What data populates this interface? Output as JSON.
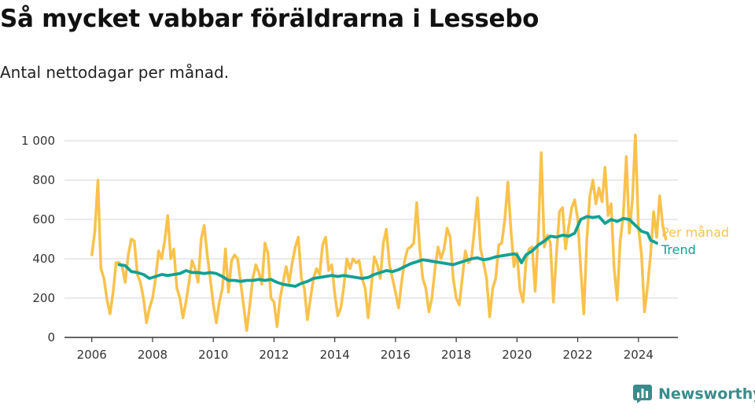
{
  "title": "Så mycket vabbar föräldrarna i Lessebo",
  "subtitle": "Antal nettodagar per månad.",
  "brand": "Newsworthy",
  "colors": {
    "monthly": "#f9c24c",
    "trend": "#10a193",
    "brand": "#3b8b8b"
  },
  "chart_data": {
    "type": "line",
    "title": "Så mycket vabbar föräldrarna i Lessebo",
    "subtitle": "Antal nettodagar per månad.",
    "xlabel": "",
    "ylabel": "",
    "x_ticks": [
      "2006",
      "2008",
      "2010",
      "2012",
      "2014",
      "2016",
      "2018",
      "2020",
      "2022",
      "2024"
    ],
    "y_ticks": [
      "0",
      "200",
      "400",
      "600",
      "800",
      "1 000"
    ],
    "ylim": [
      0,
      1000
    ],
    "xlim": [
      2005.1,
      2025.3
    ],
    "grid": true,
    "legend_position": "right-end",
    "series": [
      {
        "name": "Per månad",
        "color": "#f9c24c",
        "points": [
          [
            2006.0,
            420
          ],
          [
            2006.1,
            540
          ],
          [
            2006.2,
            800
          ],
          [
            2006.3,
            350
          ],
          [
            2006.4,
            300
          ],
          [
            2006.5,
            190
          ],
          [
            2006.6,
            120
          ],
          [
            2006.7,
            230
          ],
          [
            2006.8,
            380
          ],
          [
            2006.9,
            380
          ],
          [
            2007.0,
            360
          ],
          [
            2007.1,
            280
          ],
          [
            2007.2,
            420
          ],
          [
            2007.3,
            500
          ],
          [
            2007.4,
            490
          ],
          [
            2007.5,
            320
          ],
          [
            2007.6,
            280
          ],
          [
            2007.7,
            200
          ],
          [
            2007.8,
            75
          ],
          [
            2007.9,
            150
          ],
          [
            2008.0,
            200
          ],
          [
            2008.1,
            300
          ],
          [
            2008.2,
            440
          ],
          [
            2008.3,
            400
          ],
          [
            2008.4,
            490
          ],
          [
            2008.5,
            620
          ],
          [
            2008.6,
            400
          ],
          [
            2008.7,
            450
          ],
          [
            2008.8,
            250
          ],
          [
            2008.9,
            200
          ],
          [
            2009.0,
            100
          ],
          [
            2009.1,
            180
          ],
          [
            2009.2,
            280
          ],
          [
            2009.3,
            390
          ],
          [
            2009.4,
            350
          ],
          [
            2009.5,
            280
          ],
          [
            2009.6,
            500
          ],
          [
            2009.7,
            570
          ],
          [
            2009.8,
            420
          ],
          [
            2009.9,
            300
          ],
          [
            2010.0,
            170
          ],
          [
            2010.1,
            75
          ],
          [
            2010.2,
            180
          ],
          [
            2010.3,
            250
          ],
          [
            2010.4,
            450
          ],
          [
            2010.5,
            230
          ],
          [
            2010.6,
            390
          ],
          [
            2010.7,
            420
          ],
          [
            2010.8,
            400
          ],
          [
            2010.9,
            280
          ],
          [
            2011.0,
            160
          ],
          [
            2011.1,
            35
          ],
          [
            2011.2,
            160
          ],
          [
            2011.3,
            300
          ],
          [
            2011.4,
            370
          ],
          [
            2011.5,
            330
          ],
          [
            2011.6,
            270
          ],
          [
            2011.7,
            480
          ],
          [
            2011.8,
            430
          ],
          [
            2011.9,
            200
          ],
          [
            2012.0,
            180
          ],
          [
            2012.1,
            55
          ],
          [
            2012.2,
            200
          ],
          [
            2012.3,
            280
          ],
          [
            2012.4,
            360
          ],
          [
            2012.5,
            280
          ],
          [
            2012.6,
            380
          ],
          [
            2012.7,
            460
          ],
          [
            2012.8,
            510
          ],
          [
            2012.9,
            300
          ],
          [
            2013.0,
            250
          ],
          [
            2013.1,
            90
          ],
          [
            2013.2,
            200
          ],
          [
            2013.3,
            300
          ],
          [
            2013.4,
            350
          ],
          [
            2013.5,
            320
          ],
          [
            2013.6,
            470
          ],
          [
            2013.7,
            510
          ],
          [
            2013.8,
            340
          ],
          [
            2013.9,
            370
          ],
          [
            2014.0,
            220
          ],
          [
            2014.1,
            110
          ],
          [
            2014.2,
            150
          ],
          [
            2014.3,
            260
          ],
          [
            2014.4,
            400
          ],
          [
            2014.5,
            350
          ],
          [
            2014.6,
            400
          ],
          [
            2014.7,
            380
          ],
          [
            2014.8,
            390
          ],
          [
            2014.9,
            300
          ],
          [
            2015.0,
            250
          ],
          [
            2015.1,
            100
          ],
          [
            2015.2,
            250
          ],
          [
            2015.3,
            410
          ],
          [
            2015.4,
            370
          ],
          [
            2015.5,
            300
          ],
          [
            2015.6,
            480
          ],
          [
            2015.7,
            550
          ],
          [
            2015.8,
            370
          ],
          [
            2015.9,
            300
          ],
          [
            2016.0,
            230
          ],
          [
            2016.1,
            150
          ],
          [
            2016.2,
            280
          ],
          [
            2016.3,
            390
          ],
          [
            2016.4,
            450
          ],
          [
            2016.5,
            460
          ],
          [
            2016.6,
            480
          ],
          [
            2016.7,
            685
          ],
          [
            2016.8,
            450
          ],
          [
            2016.9,
            300
          ],
          [
            2017.0,
            250
          ],
          [
            2017.1,
            130
          ],
          [
            2017.2,
            200
          ],
          [
            2017.3,
            350
          ],
          [
            2017.4,
            460
          ],
          [
            2017.5,
            400
          ],
          [
            2017.6,
            450
          ],
          [
            2017.7,
            555
          ],
          [
            2017.8,
            510
          ],
          [
            2017.9,
            300
          ],
          [
            2018.0,
            200
          ],
          [
            2018.1,
            165
          ],
          [
            2018.2,
            300
          ],
          [
            2018.3,
            440
          ],
          [
            2018.4,
            380
          ],
          [
            2018.5,
            400
          ],
          [
            2018.6,
            550
          ],
          [
            2018.7,
            710
          ],
          [
            2018.8,
            450
          ],
          [
            2018.9,
            380
          ],
          [
            2019.0,
            300
          ],
          [
            2019.1,
            105
          ],
          [
            2019.2,
            250
          ],
          [
            2019.3,
            300
          ],
          [
            2019.4,
            470
          ],
          [
            2019.5,
            480
          ],
          [
            2019.6,
            600
          ],
          [
            2019.7,
            790
          ],
          [
            2019.8,
            550
          ],
          [
            2019.9,
            360
          ],
          [
            2020.0,
            430
          ],
          [
            2020.1,
            240
          ],
          [
            2020.2,
            180
          ],
          [
            2020.3,
            390
          ],
          [
            2020.4,
            450
          ],
          [
            2020.5,
            460
          ],
          [
            2020.6,
            235
          ],
          [
            2020.7,
            530
          ],
          [
            2020.8,
            940
          ],
          [
            2020.9,
            460
          ],
          [
            2021.0,
            520
          ],
          [
            2021.1,
            480
          ],
          [
            2021.2,
            180
          ],
          [
            2021.3,
            420
          ],
          [
            2021.4,
            640
          ],
          [
            2021.5,
            660
          ],
          [
            2021.6,
            450
          ],
          [
            2021.7,
            560
          ],
          [
            2021.8,
            660
          ],
          [
            2021.9,
            700
          ],
          [
            2022.0,
            600
          ],
          [
            2022.1,
            350
          ],
          [
            2022.2,
            120
          ],
          [
            2022.3,
            500
          ],
          [
            2022.4,
            720
          ],
          [
            2022.5,
            800
          ],
          [
            2022.6,
            680
          ],
          [
            2022.7,
            760
          ],
          [
            2022.8,
            690
          ],
          [
            2022.9,
            865
          ],
          [
            2023.0,
            620
          ],
          [
            2023.1,
            680
          ],
          [
            2023.2,
            350
          ],
          [
            2023.3,
            190
          ],
          [
            2023.4,
            490
          ],
          [
            2023.5,
            620
          ],
          [
            2023.6,
            920
          ],
          [
            2023.7,
            530
          ],
          [
            2023.8,
            700
          ],
          [
            2023.9,
            1030
          ],
          [
            2024.0,
            560
          ],
          [
            2024.1,
            420
          ],
          [
            2024.2,
            130
          ],
          [
            2024.3,
            260
          ],
          [
            2024.4,
            420
          ],
          [
            2024.5,
            640
          ],
          [
            2024.6,
            510
          ],
          [
            2024.7,
            720
          ],
          [
            2024.8,
            570
          ],
          [
            2024.9,
            500
          ]
        ]
      },
      {
        "name": "Trend",
        "color": "#10a193",
        "points": [
          [
            2006.9,
            370
          ],
          [
            2007.1,
            365
          ],
          [
            2007.3,
            335
          ],
          [
            2007.5,
            330
          ],
          [
            2007.7,
            320
          ],
          [
            2007.9,
            300
          ],
          [
            2008.1,
            310
          ],
          [
            2008.3,
            320
          ],
          [
            2008.5,
            315
          ],
          [
            2008.7,
            320
          ],
          [
            2008.9,
            325
          ],
          [
            2009.1,
            340
          ],
          [
            2009.3,
            330
          ],
          [
            2009.5,
            330
          ],
          [
            2009.7,
            325
          ],
          [
            2009.9,
            330
          ],
          [
            2010.1,
            325
          ],
          [
            2010.3,
            310
          ],
          [
            2010.5,
            290
          ],
          [
            2010.7,
            290
          ],
          [
            2010.9,
            285
          ],
          [
            2011.1,
            290
          ],
          [
            2011.3,
            290
          ],
          [
            2011.5,
            295
          ],
          [
            2011.7,
            290
          ],
          [
            2011.9,
            295
          ],
          [
            2012.1,
            280
          ],
          [
            2012.3,
            270
          ],
          [
            2012.5,
            265
          ],
          [
            2012.7,
            260
          ],
          [
            2012.9,
            275
          ],
          [
            2013.1,
            285
          ],
          [
            2013.3,
            300
          ],
          [
            2013.5,
            305
          ],
          [
            2013.7,
            310
          ],
          [
            2013.9,
            315
          ],
          [
            2014.1,
            310
          ],
          [
            2014.3,
            315
          ],
          [
            2014.5,
            310
          ],
          [
            2014.7,
            305
          ],
          [
            2014.9,
            300
          ],
          [
            2015.1,
            305
          ],
          [
            2015.3,
            320
          ],
          [
            2015.5,
            330
          ],
          [
            2015.7,
            340
          ],
          [
            2015.9,
            335
          ],
          [
            2016.1,
            345
          ],
          [
            2016.3,
            360
          ],
          [
            2016.5,
            375
          ],
          [
            2016.7,
            385
          ],
          [
            2016.9,
            395
          ],
          [
            2017.1,
            390
          ],
          [
            2017.3,
            385
          ],
          [
            2017.5,
            380
          ],
          [
            2017.7,
            375
          ],
          [
            2017.9,
            370
          ],
          [
            2018.1,
            380
          ],
          [
            2018.3,
            390
          ],
          [
            2018.5,
            400
          ],
          [
            2018.7,
            405
          ],
          [
            2018.9,
            395
          ],
          [
            2019.1,
            400
          ],
          [
            2019.3,
            410
          ],
          [
            2019.5,
            415
          ],
          [
            2019.7,
            420
          ],
          [
            2019.9,
            425
          ],
          [
            2020.0,
            420
          ],
          [
            2020.15,
            380
          ],
          [
            2020.3,
            420
          ],
          [
            2020.5,
            440
          ],
          [
            2020.7,
            470
          ],
          [
            2020.9,
            490
          ],
          [
            2021.1,
            515
          ],
          [
            2021.3,
            510
          ],
          [
            2021.5,
            520
          ],
          [
            2021.7,
            515
          ],
          [
            2021.9,
            530
          ],
          [
            2022.1,
            600
          ],
          [
            2022.3,
            615
          ],
          [
            2022.5,
            610
          ],
          [
            2022.7,
            615
          ],
          [
            2022.9,
            580
          ],
          [
            2023.1,
            600
          ],
          [
            2023.3,
            590
          ],
          [
            2023.5,
            605
          ],
          [
            2023.7,
            600
          ],
          [
            2023.9,
            570
          ],
          [
            2024.1,
            540
          ],
          [
            2024.3,
            530
          ],
          [
            2024.4,
            495
          ],
          [
            2024.6,
            480
          ]
        ]
      }
    ]
  }
}
